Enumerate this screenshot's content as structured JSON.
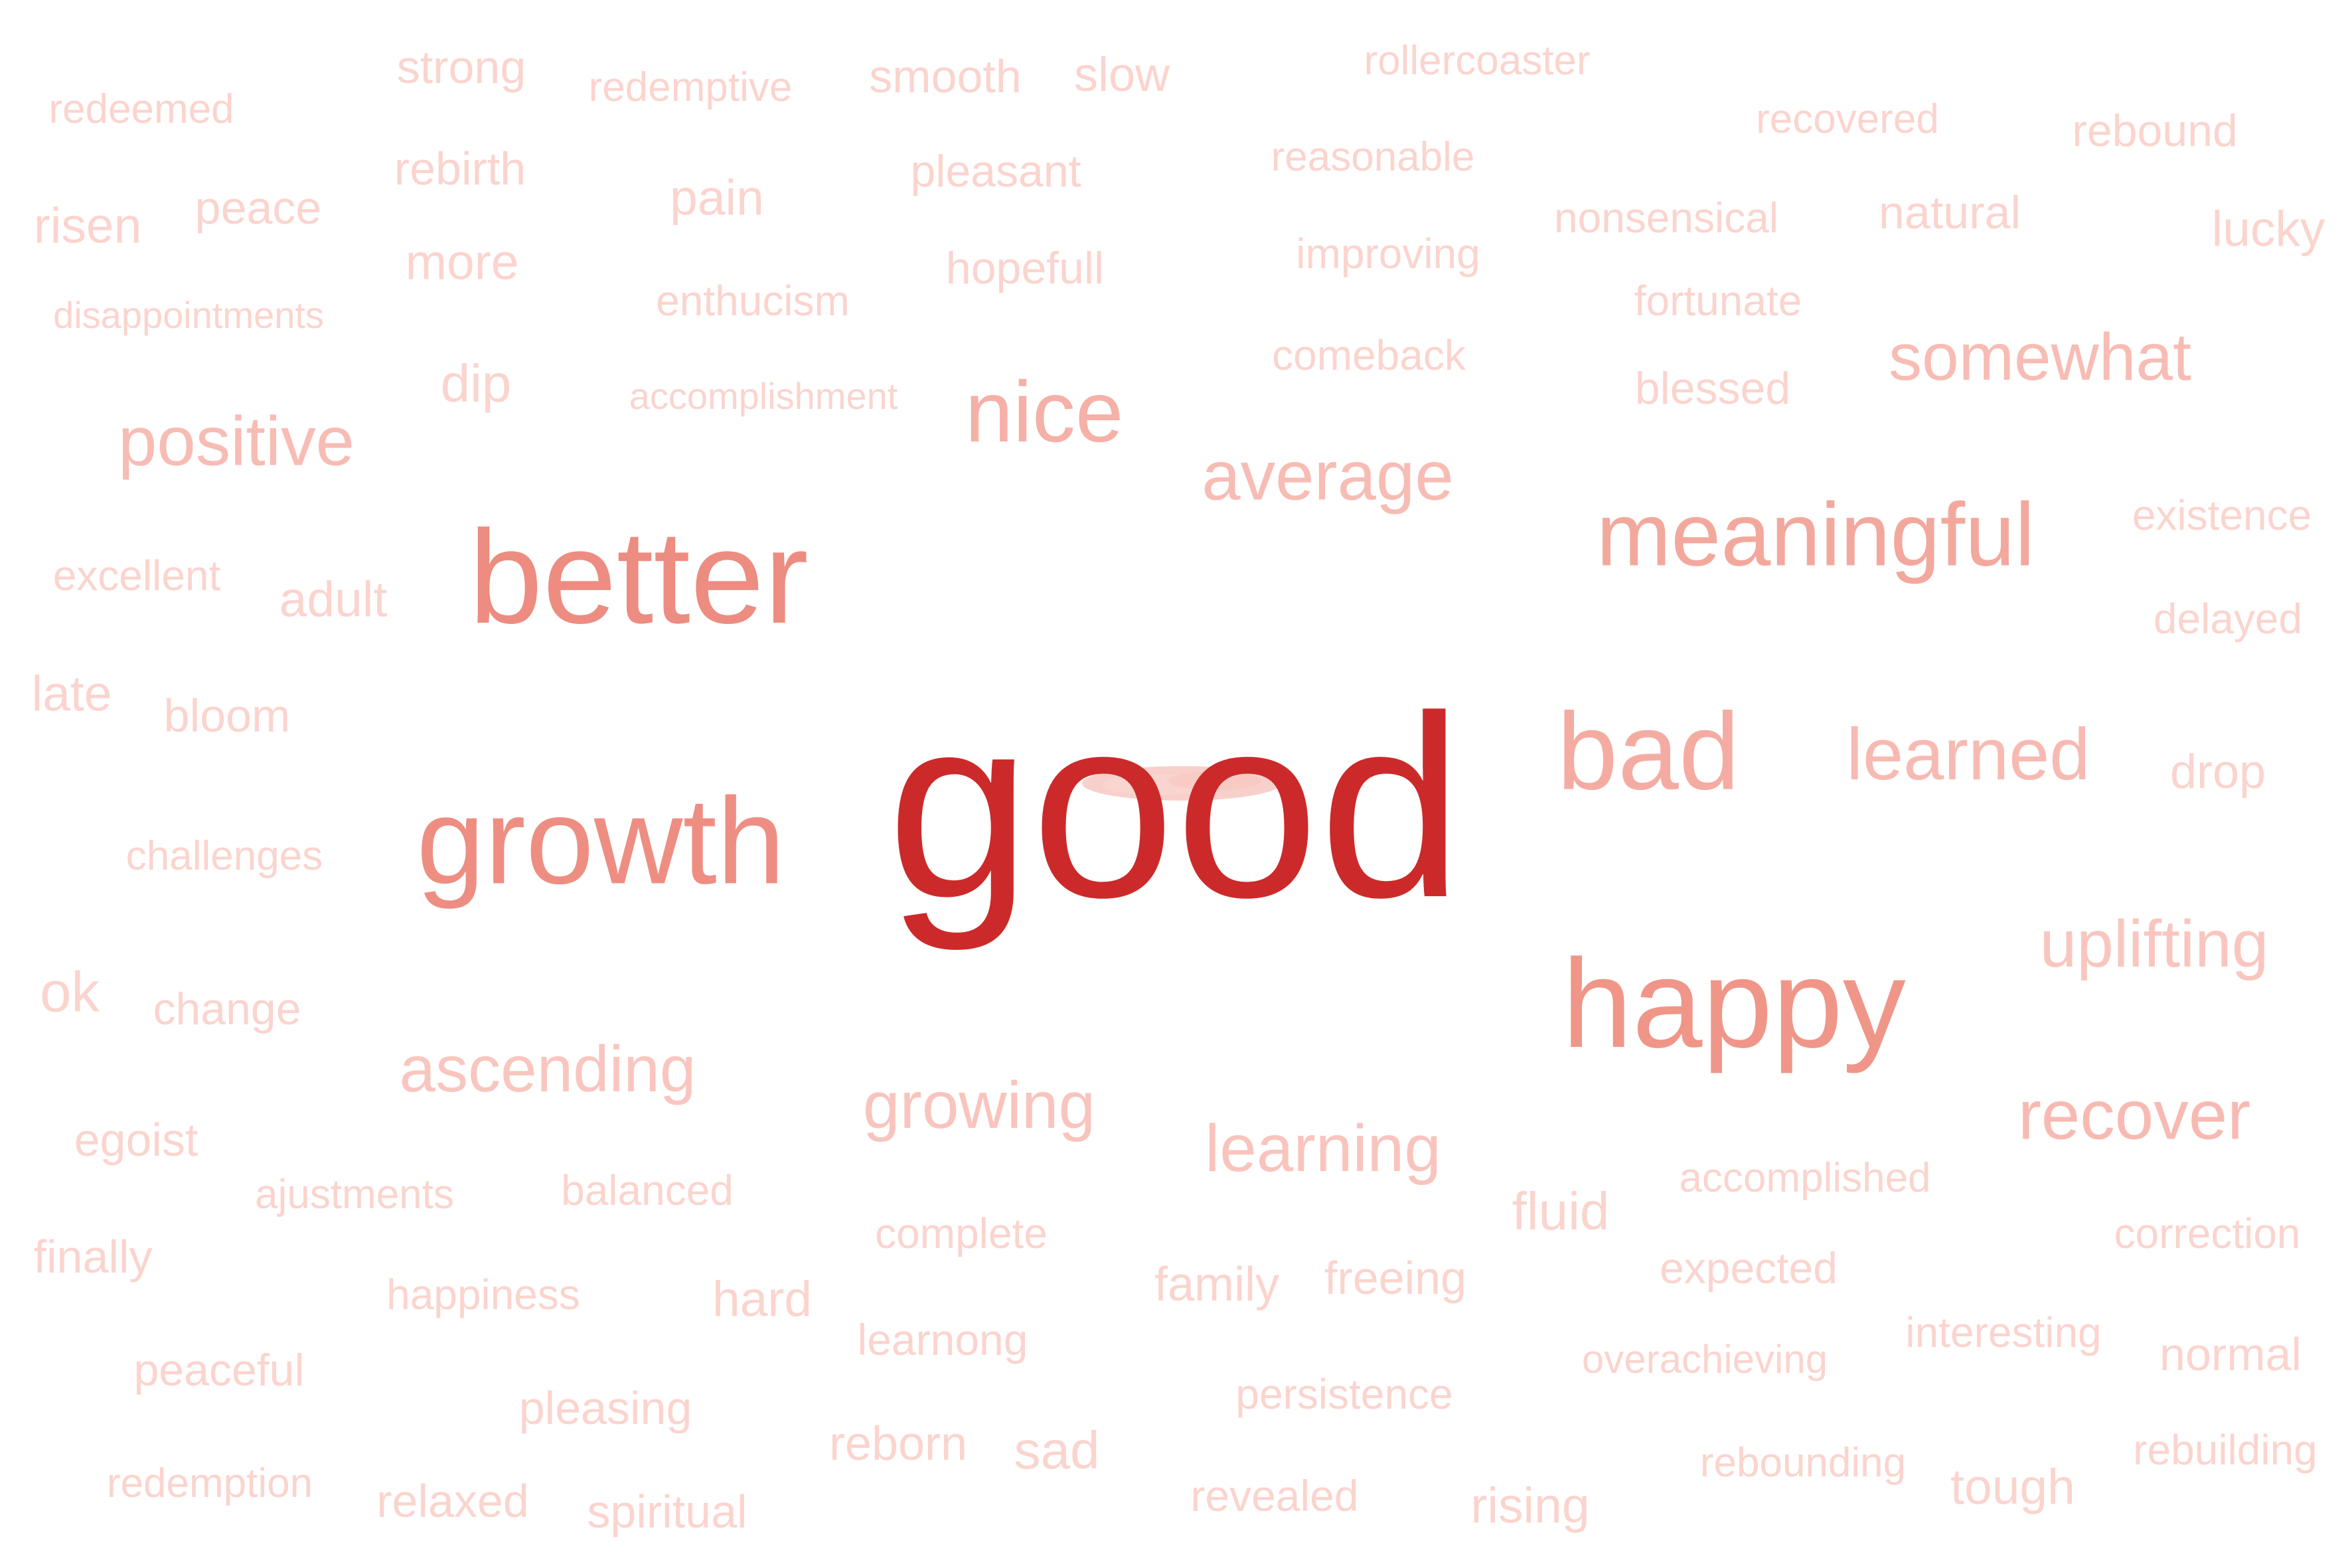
{
  "word_cloud": {
    "words": [
      {
        "text": "good",
        "rank": 1,
        "color": "#cc2a2a"
      },
      {
        "text": "better",
        "rank": 2,
        "color": "#ed8c80"
      },
      {
        "text": "growth",
        "rank": 2,
        "color": "#ee8e82"
      },
      {
        "text": "happy",
        "rank": 2,
        "color": "#ef9689"
      },
      {
        "text": "bad",
        "rank": 3,
        "color": "#f4aca2"
      },
      {
        "text": "meaningful",
        "rank": 3,
        "color": "#f3a89d"
      },
      {
        "text": "nice",
        "rank": 3,
        "color": "#f5b0a7"
      },
      {
        "text": "learned",
        "rank": 4,
        "color": "#f7bab2"
      },
      {
        "text": "average",
        "rank": 4,
        "color": "#f7bcb4"
      },
      {
        "text": "positive",
        "rank": 4,
        "color": "#f7bcb4"
      },
      {
        "text": "somewhat",
        "rank": 4,
        "color": "#f7bcb4"
      },
      {
        "text": "recover",
        "rank": 4,
        "color": "#f7bab2"
      },
      {
        "text": "uplifting",
        "rank": 4,
        "color": "#f9c6bf"
      },
      {
        "text": "growing",
        "rank": 4,
        "color": "#f9c4bd"
      },
      {
        "text": "learning",
        "rank": 4,
        "color": "#f9c4bd"
      },
      {
        "text": "ascending",
        "rank": 4,
        "color": "#f9c6bf"
      },
      {
        "text": "strong",
        "rank": 6,
        "color": "#fbd4ce"
      },
      {
        "text": "redemptive",
        "rank": 7,
        "color": "#fbd4ce"
      },
      {
        "text": "smooth",
        "rank": 6,
        "color": "#fbd4ce"
      },
      {
        "text": "slow",
        "rank": 6,
        "color": "#fbd4ce"
      },
      {
        "text": "rollercoaster",
        "rank": 7,
        "color": "#fbd4ce"
      },
      {
        "text": "redeemed",
        "rank": 7,
        "color": "#fbd4ce"
      },
      {
        "text": "recovered",
        "rank": 7,
        "color": "#fbd4ce"
      },
      {
        "text": "rebound",
        "rank": 6,
        "color": "#fbd4ce"
      },
      {
        "text": "rebirth",
        "rank": 6,
        "color": "#fbd4ce"
      },
      {
        "text": "pleasant",
        "rank": 6,
        "color": "#fbd4ce"
      },
      {
        "text": "reasonable",
        "rank": 7,
        "color": "#fbd4ce"
      },
      {
        "text": "risen",
        "rank": 6,
        "color": "#fbd4ce"
      },
      {
        "text": "peace",
        "rank": 6,
        "color": "#fbd4ce"
      },
      {
        "text": "pain",
        "rank": 6,
        "color": "#fbd4ce"
      },
      {
        "text": "nonsensical",
        "rank": 7,
        "color": "#fbd4ce"
      },
      {
        "text": "natural",
        "rank": 6,
        "color": "#fbd4ce"
      },
      {
        "text": "lucky",
        "rank": 6,
        "color": "#fbd4ce"
      },
      {
        "text": "more",
        "rank": 6,
        "color": "#fbd4ce"
      },
      {
        "text": "hopefull",
        "rank": 6,
        "color": "#fbd4ce"
      },
      {
        "text": "improving",
        "rank": 7,
        "color": "#fbd4ce"
      },
      {
        "text": "enthucism",
        "rank": 7,
        "color": "#fbd4ce"
      },
      {
        "text": "fortunate",
        "rank": 7,
        "color": "#fbd4ce"
      },
      {
        "text": "disappointments",
        "rank": 8,
        "color": "#fbd4ce"
      },
      {
        "text": "comeback",
        "rank": 7,
        "color": "#fbd4ce"
      },
      {
        "text": "dip",
        "rank": 6,
        "color": "#fbd4ce"
      },
      {
        "text": "accomplishment",
        "rank": 8,
        "color": "#fbd4ce"
      },
      {
        "text": "blessed",
        "rank": 7,
        "color": "#fbd4ce"
      },
      {
        "text": "existence",
        "rank": 7,
        "color": "#fbd4ce"
      },
      {
        "text": "excellent",
        "rank": 7,
        "color": "#fbd4ce"
      },
      {
        "text": "adult",
        "rank": 6,
        "color": "#fbd4ce"
      },
      {
        "text": "delayed",
        "rank": 7,
        "color": "#fbd4ce"
      },
      {
        "text": "late",
        "rank": 6,
        "color": "#fbd4ce"
      },
      {
        "text": "bloom",
        "rank": 6,
        "color": "#fbd4ce"
      },
      {
        "text": "drop",
        "rank": 6,
        "color": "#fbd4ce"
      },
      {
        "text": "challenges",
        "rank": 7,
        "color": "#fbd4ce"
      },
      {
        "text": "ok",
        "rank": 6,
        "color": "#fbd4ce"
      },
      {
        "text": "change",
        "rank": 7,
        "color": "#fbd4ce"
      },
      {
        "text": "egoist",
        "rank": 7,
        "color": "#fbd4ce"
      },
      {
        "text": "accomplished",
        "rank": 7,
        "color": "#fbd4ce"
      },
      {
        "text": "fluid",
        "rank": 6,
        "color": "#fbd4ce"
      },
      {
        "text": "ajustments",
        "rank": 7,
        "color": "#fbd4ce"
      },
      {
        "text": "balanced",
        "rank": 7,
        "color": "#fbd4ce"
      },
      {
        "text": "complete",
        "rank": 7,
        "color": "#fbd4ce"
      },
      {
        "text": "correction",
        "rank": 7,
        "color": "#fbd4ce"
      },
      {
        "text": "finally",
        "rank": 6,
        "color": "#fbd4ce"
      },
      {
        "text": "expected",
        "rank": 7,
        "color": "#fbd4ce"
      },
      {
        "text": "family",
        "rank": 6,
        "color": "#fbd4ce"
      },
      {
        "text": "freeing",
        "rank": 6,
        "color": "#fbd4ce"
      },
      {
        "text": "happiness",
        "rank": 7,
        "color": "#fbd4ce"
      },
      {
        "text": "hard",
        "rank": 6,
        "color": "#fbd4ce"
      },
      {
        "text": "interesting",
        "rank": 7,
        "color": "#fbd4ce"
      },
      {
        "text": "learnong",
        "rank": 7,
        "color": "#fbd4ce"
      },
      {
        "text": "normal",
        "rank": 6,
        "color": "#fbd4ce"
      },
      {
        "text": "overachieving",
        "rank": 7,
        "color": "#fbd4ce"
      },
      {
        "text": "peaceful",
        "rank": 7,
        "color": "#fbd4ce"
      },
      {
        "text": "persistence",
        "rank": 7,
        "color": "#fbd4ce"
      },
      {
        "text": "pleasing",
        "rank": 7,
        "color": "#fbd4ce"
      },
      {
        "text": "rebuilding",
        "rank": 7,
        "color": "#fbd4ce"
      },
      {
        "text": "reborn",
        "rank": 6,
        "color": "#fbd4ce"
      },
      {
        "text": "sad",
        "rank": 6,
        "color": "#fbd4ce"
      },
      {
        "text": "rebounding",
        "rank": 7,
        "color": "#fbd4ce"
      },
      {
        "text": "tough",
        "rank": 6,
        "color": "#fbd4ce"
      },
      {
        "text": "redemption",
        "rank": 7,
        "color": "#fbd4ce"
      },
      {
        "text": "relaxed",
        "rank": 6,
        "color": "#fbd4ce"
      },
      {
        "text": "spiritual",
        "rank": 7,
        "color": "#fbd4ce"
      },
      {
        "text": "revealed",
        "rank": 7,
        "color": "#fbd4ce"
      },
      {
        "text": "rising",
        "rank": 6,
        "color": "#fbd4ce"
      }
    ]
  }
}
